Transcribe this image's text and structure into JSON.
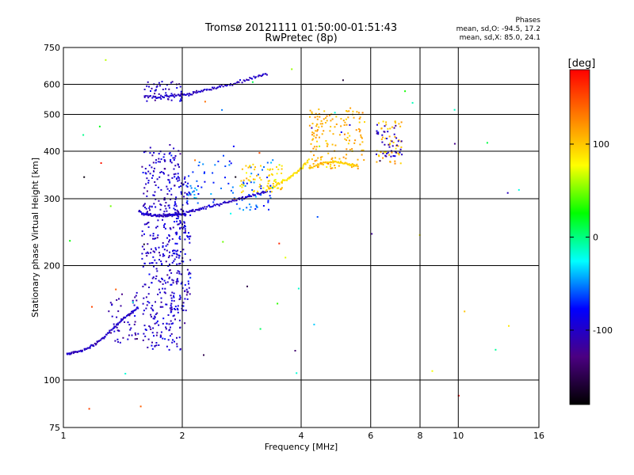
{
  "chart_data": {
    "type": "scatter",
    "title": "Tromsø 20121111 01:50:00-01:51:43",
    "subtitle": "RwPretec (8p)",
    "xlabel": "Frequency [MHz]",
    "ylabel": "Stationary phase Virtual Height [km]",
    "x_scale": "log",
    "y_scale": "log",
    "xlim": [
      1,
      16
    ],
    "ylim": [
      75,
      750
    ],
    "x_ticks": [
      1,
      2,
      4,
      6,
      8,
      10,
      16
    ],
    "x_tick_labels": [
      "1",
      "2",
      "4",
      "6",
      "8",
      "10",
      "16"
    ],
    "y_ticks": [
      75,
      100,
      200,
      300,
      400,
      500,
      600,
      750
    ],
    "y_tick_labels": [
      "75",
      "100",
      "200",
      "300",
      "400",
      "500",
      "600",
      "750"
    ],
    "grid": true,
    "colorbar": {
      "label": "[deg]",
      "range": [
        -180,
        180
      ],
      "ticks": [
        100,
        0,
        -100
      ],
      "tick_labels": [
        "100",
        "0",
        "-100"
      ],
      "colors": [
        "#000000",
        "#4b0082",
        "#0000ff",
        "#00ffff",
        "#00ff00",
        "#ffff00",
        "#ff8000",
        "#ff0000"
      ]
    },
    "phase_stats": {
      "heading": "Phases",
      "line_o": "mean, sd,O: -94.5, 17.2",
      "line_x": "mean, sd,X: 85.0, 24.1"
    },
    "traces": [
      {
        "x": [
          1.02,
          1.05,
          1.1,
          1.15,
          1.2,
          1.25,
          1.3,
          1.35,
          1.4,
          1.45,
          1.5,
          1.55
        ],
        "y": [
          117,
          118,
          119,
          121,
          124,
          128,
          133,
          138,
          143,
          148,
          152,
          155
        ],
        "phase": -100
      },
      {
        "x": [
          1.55,
          1.6,
          1.65,
          1.7,
          1.75,
          1.8,
          1.85,
          1.9,
          1.95,
          2.0,
          2.05
        ],
        "y": [
          278,
          274,
          272,
          271,
          271,
          271,
          272,
          272,
          273,
          273,
          274
        ],
        "phase": -100
      },
      {
        "x": [
          2.05,
          2.15,
          2.25,
          2.4,
          2.55,
          2.7,
          2.85,
          3.0,
          3.15,
          3.3
        ],
        "y": [
          276,
          280,
          283,
          287,
          292,
          297,
          301,
          305,
          310,
          315
        ],
        "phase": -100
      },
      {
        "x": [
          3.3,
          3.45,
          3.6,
          3.75,
          3.9,
          4.05,
          4.2
        ],
        "y": [
          318,
          325,
          333,
          341,
          352,
          365,
          380
        ],
        "phase": 90
      },
      {
        "x": [
          4.2,
          4.4,
          4.6,
          4.8,
          5.0,
          5.2,
          5.4,
          5.6
        ],
        "y": [
          362,
          368,
          372,
          375,
          374,
          372,
          368,
          366
        ],
        "phase": 100
      },
      {
        "x": [
          1.6,
          1.7,
          1.8,
          1.9,
          2.0,
          2.1,
          2.2,
          2.35,
          2.5,
          2.7,
          2.9,
          3.1,
          3.3
        ],
        "y": [
          558,
          556,
          557,
          560,
          562,
          566,
          573,
          582,
          592,
          603,
          615,
          628,
          640
        ],
        "phase": -100
      }
    ],
    "clusters": [
      {
        "x_range": [
          1.58,
          1.98
        ],
        "y_range": [
          120,
          420
        ],
        "phase": -100
      },
      {
        "x_range": [
          1.85,
          2.1
        ],
        "y_range": [
          150,
          350
        ],
        "phase": -95
      },
      {
        "x_range": [
          1.3,
          1.55
        ],
        "y_range": [
          125,
          170
        ],
        "phase": -110
      },
      {
        "x_range": [
          1.6,
          2.0
        ],
        "y_range": [
          540,
          610
        ],
        "phase": -100
      },
      {
        "x_range": [
          2.05,
          3.4
        ],
        "y_range": [
          280,
          380
        ],
        "phase": -60
      },
      {
        "x_range": [
          2.8,
          3.6
        ],
        "y_range": [
          310,
          370
        ],
        "phase": 90
      },
      {
        "x_range": [
          4.2,
          5.8
        ],
        "y_range": [
          360,
          520
        ],
        "phase": 110
      },
      {
        "x_range": [
          6.2,
          7.2
        ],
        "y_range": [
          370,
          480
        ],
        "phase": 100
      },
      {
        "x_range": [
          6.2,
          7.2
        ],
        "y_range": [
          380,
          470
        ],
        "phase": -100
      },
      {
        "x_range": [
          1.0,
          15.0
        ],
        "y_range": [
          80,
          700
        ],
        "phase": 0
      }
    ]
  }
}
